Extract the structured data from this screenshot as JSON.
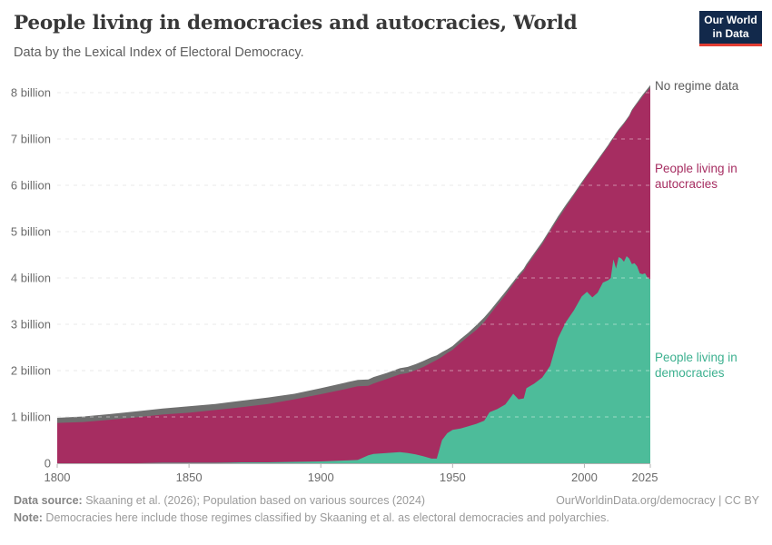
{
  "header": {
    "title": "People living in democracies and autocracies, World",
    "subtitle": "Data by the Lexical Index of Electoral Democracy.",
    "logo": {
      "line1": "Our World",
      "line2": "in Data",
      "bg": "#12294B",
      "stripe": "#E23D33"
    }
  },
  "chart_data": {
    "type": "area",
    "stacked": true,
    "title": "People living in democracies and autocracies, World",
    "xlabel": "",
    "ylabel": "",
    "xlim": [
      1800,
      2025
    ],
    "ylim": [
      0,
      8.3
    ],
    "grid": "horizontal-dashed",
    "legend_position": "direct-labels-right",
    "unit": "billion people",
    "x": [
      1800,
      1810,
      1820,
      1830,
      1840,
      1850,
      1860,
      1870,
      1880,
      1890,
      1900,
      1910,
      1914,
      1918,
      1920,
      1925,
      1930,
      1933,
      1936,
      1939,
      1942,
      1944,
      1946,
      1948,
      1950,
      1953,
      1956,
      1959,
      1962,
      1964,
      1967,
      1970,
      1973,
      1975,
      1977,
      1978,
      1981,
      1984,
      1987,
      1990,
      1993,
      1996,
      1999,
      2001,
      2003,
      2005,
      2007,
      2009,
      2010,
      2011,
      2012,
      2013,
      2014,
      2015,
      2016,
      2017,
      2018,
      2019,
      2020,
      2021,
      2022,
      2023,
      2024,
      2025
    ],
    "series": [
      {
        "name": "People living in democracies",
        "color": "#4DBC9A",
        "values": [
          0,
          0,
          0,
          0,
          0.01,
          0.01,
          0.01,
          0.02,
          0.02,
          0.03,
          0.04,
          0.06,
          0.07,
          0.17,
          0.2,
          0.22,
          0.24,
          0.22,
          0.19,
          0.15,
          0.1,
          0.1,
          0.5,
          0.65,
          0.72,
          0.75,
          0.8,
          0.85,
          0.92,
          1.1,
          1.17,
          1.27,
          1.5,
          1.38,
          1.4,
          1.62,
          1.72,
          1.85,
          2.1,
          2.7,
          3.05,
          3.3,
          3.6,
          3.7,
          3.58,
          3.68,
          3.9,
          3.95,
          4.0,
          4.4,
          4.2,
          4.45,
          4.42,
          4.35,
          4.47,
          4.42,
          4.3,
          4.32,
          4.25,
          4.1,
          4.08,
          4.1,
          4.0,
          3.97
        ]
      },
      {
        "name": "People living in autocracies",
        "color": "#A62D61",
        "values": [
          0.87,
          0.89,
          0.94,
          0.99,
          1.04,
          1.08,
          1.14,
          1.19,
          1.26,
          1.35,
          1.45,
          1.55,
          1.59,
          1.5,
          1.52,
          1.6,
          1.68,
          1.73,
          1.82,
          1.93,
          2.07,
          2.13,
          1.8,
          1.73,
          1.73,
          1.85,
          1.94,
          2.03,
          2.13,
          2.1,
          2.25,
          2.36,
          2.37,
          2.64,
          2.75,
          2.63,
          2.77,
          2.88,
          2.91,
          2.57,
          2.48,
          2.48,
          2.43,
          2.5,
          2.78,
          2.84,
          2.78,
          2.89,
          2.93,
          2.61,
          2.9,
          2.73,
          2.83,
          2.97,
          2.93,
          3.06,
          3.3,
          3.36,
          3.51,
          3.73,
          3.83,
          3.88,
          4.04,
          4.13
        ]
      },
      {
        "name": "No regime data",
        "color": "#6F6F6F",
        "values": [
          0.11,
          0.12,
          0.12,
          0.13,
          0.13,
          0.14,
          0.13,
          0.14,
          0.14,
          0.12,
          0.13,
          0.14,
          0.14,
          0.14,
          0.14,
          0.13,
          0.13,
          0.13,
          0.13,
          0.13,
          0.12,
          0.1,
          0.1,
          0.08,
          0.08,
          0.08,
          0.08,
          0.1,
          0.1,
          0.08,
          0.07,
          0.07,
          0.05,
          0.05,
          0.05,
          0.05,
          0.05,
          0.05,
          0.04,
          0.06,
          0.05,
          0.04,
          0.04,
          0.03,
          0.03,
          0.03,
          0.03,
          0.03,
          0.03,
          0.03,
          0.03,
          0.03,
          0.03,
          0.03,
          0.03,
          0.03,
          0.03,
          0.03,
          0.03,
          0.04,
          0.04,
          0.04,
          0.05,
          0.06
        ]
      }
    ],
    "x_ticks": [
      {
        "value": 1800,
        "label": "1800"
      },
      {
        "value": 1850,
        "label": "1850"
      },
      {
        "value": 1900,
        "label": "1900"
      },
      {
        "value": 1950,
        "label": "1950"
      },
      {
        "value": 2000,
        "label": "2000"
      },
      {
        "value": 2025,
        "label": "2025"
      }
    ],
    "y_ticks": [
      {
        "value": 0,
        "label": "0"
      },
      {
        "value": 1,
        "label": "1 billion"
      },
      {
        "value": 2,
        "label": "2 billion"
      },
      {
        "value": 3,
        "label": "3 billion"
      },
      {
        "value": 4,
        "label": "4 billion"
      },
      {
        "value": 5,
        "label": "5 billion"
      },
      {
        "value": 6,
        "label": "6 billion"
      },
      {
        "value": 7,
        "label": "7 billion"
      },
      {
        "value": 8,
        "label": "8 billion"
      }
    ],
    "annotations": [
      {
        "text": "No regime data",
        "color": "#5B5B5B"
      },
      {
        "text": "People living in autocracies",
        "color": "#A62D61"
      },
      {
        "text": "People living in democracies",
        "color": "#3CB08F"
      }
    ]
  },
  "footer": {
    "source_label": "Data source:",
    "source_text": " Skaaning et al. (2026); Population based on various sources (2024)",
    "link": "OurWorldinData.org/democracy | CC BY",
    "note_label": "Note:",
    "note_text": " Democracies here include those regimes classified by Skaaning et al. as electoral democracies and polyarchies."
  }
}
